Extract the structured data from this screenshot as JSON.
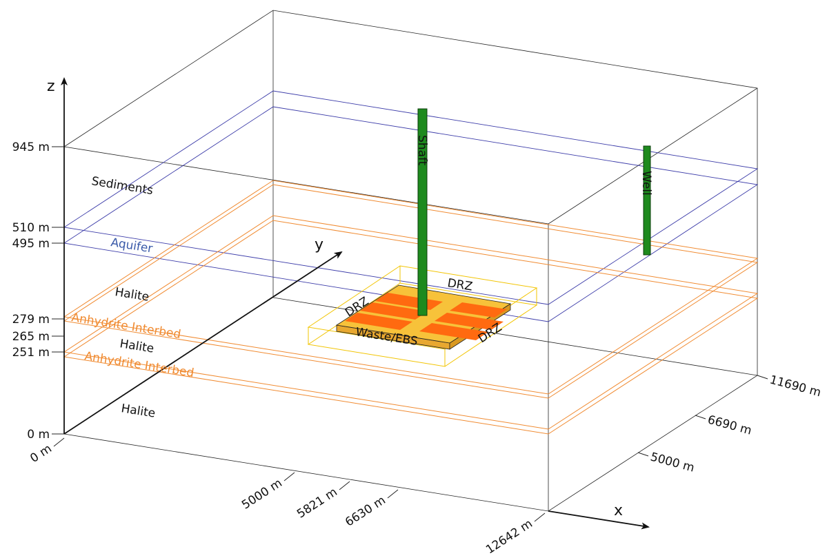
{
  "axes": {
    "x": {
      "label": "x",
      "ticks": [
        "0 m",
        "5000 m",
        "5821 m",
        "6630 m",
        "12642 m"
      ]
    },
    "y": {
      "label": "y",
      "ticks": [
        "5000 m",
        "6690 m",
        "11690 m"
      ]
    },
    "z": {
      "label": "z",
      "ticks": [
        "945 m",
        "510 m",
        "495 m",
        "279 m",
        "265 m",
        "251 m",
        "0 m"
      ]
    }
  },
  "layers": [
    "Sediments",
    "Aquifer",
    "Halite",
    "Anhydrite Interbed",
    "Halite",
    "Anhydrite Interbed",
    "Halite"
  ],
  "components": {
    "drz_top": "DRZ",
    "drz_left": "DRZ",
    "waste": "Waste/EBS",
    "drz_right": "DRZ",
    "shaft": "Shaft",
    "well": "Well"
  }
}
